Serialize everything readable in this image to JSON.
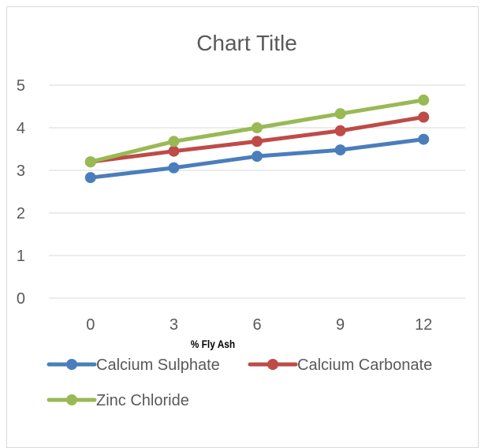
{
  "chart_data": {
    "type": "line",
    "title": "Chart Title",
    "xlabel": "% Fly Ash",
    "ylabel": "",
    "categories": [
      "0",
      "3",
      "6",
      "9",
      "12"
    ],
    "ylim": [
      0,
      5
    ],
    "yticks": [
      "0",
      "1",
      "2",
      "3",
      "4",
      "5"
    ],
    "grid": true,
    "legend_position": "bottom",
    "series": [
      {
        "name": "Calcium Sulphate",
        "color": "#4a7ebb",
        "values": [
          2.83,
          3.06,
          3.33,
          3.48,
          3.73
        ]
      },
      {
        "name": "Calcium Carbonate",
        "color": "#be4b48",
        "values": [
          3.2,
          3.45,
          3.68,
          3.93,
          4.25
        ]
      },
      {
        "name": "Zinc Chloride",
        "color": "#98b954",
        "values": [
          3.2,
          3.68,
          4.0,
          4.33,
          4.65
        ]
      }
    ]
  }
}
